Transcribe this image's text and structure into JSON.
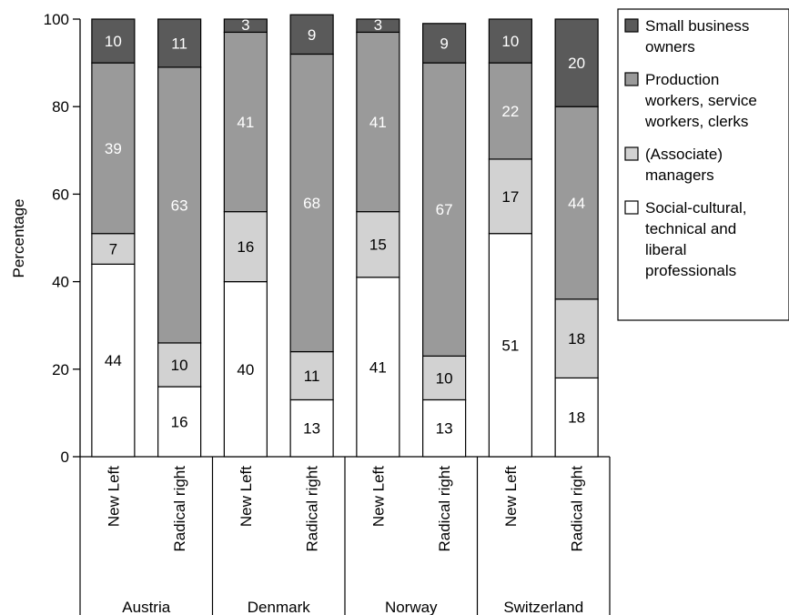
{
  "chart_data": {
    "type": "bar",
    "stacked": true,
    "ylabel": "Percentage",
    "ylim": [
      0,
      100
    ],
    "yticks": [
      0,
      20,
      40,
      60,
      80,
      100
    ],
    "legend_position": "right",
    "groups": [
      "Austria",
      "Denmark",
      "Norway",
      "Switzerland"
    ],
    "categories": [
      {
        "group": "Austria",
        "label": "New Left"
      },
      {
        "group": "Austria",
        "label": "Radical right"
      },
      {
        "group": "Denmark",
        "label": "New Left"
      },
      {
        "group": "Denmark",
        "label": "Radical right"
      },
      {
        "group": "Norway",
        "label": "New Left"
      },
      {
        "group": "Norway",
        "label": "Radical right"
      },
      {
        "group": "Switzerland",
        "label": "New Left"
      },
      {
        "group": "Switzerland",
        "label": "Radical right"
      }
    ],
    "series": [
      {
        "name": "Social-cultural, technical and liberal professionals",
        "color": "#ffffff",
        "label_color": "#000000",
        "values": [
          44,
          16,
          40,
          13,
          41,
          13,
          51,
          18
        ]
      },
      {
        "name": "(Associate) managers",
        "color": "#d2d2d2",
        "label_color": "#000000",
        "values": [
          7,
          10,
          16,
          11,
          15,
          10,
          17,
          18
        ]
      },
      {
        "name": "Production workers, service workers, clerks",
        "color": "#9a9a9a",
        "label_color": "#ffffff",
        "values": [
          39,
          63,
          41,
          68,
          41,
          67,
          22,
          44
        ]
      },
      {
        "name": "Small business owners",
        "color": "#5a5a5a",
        "label_color": "#ffffff",
        "values": [
          10,
          11,
          3,
          9,
          3,
          9,
          10,
          20
        ]
      }
    ],
    "legend": [
      {
        "series": 3,
        "lines": [
          "Small business",
          "owners"
        ]
      },
      {
        "series": 2,
        "lines": [
          "Production",
          "workers, service",
          "workers, clerks"
        ]
      },
      {
        "series": 1,
        "lines": [
          "(Associate)",
          "managers"
        ]
      },
      {
        "series": 0,
        "lines": [
          "Social-cultural,",
          "technical and",
          "liberal",
          "professionals"
        ]
      }
    ]
  }
}
